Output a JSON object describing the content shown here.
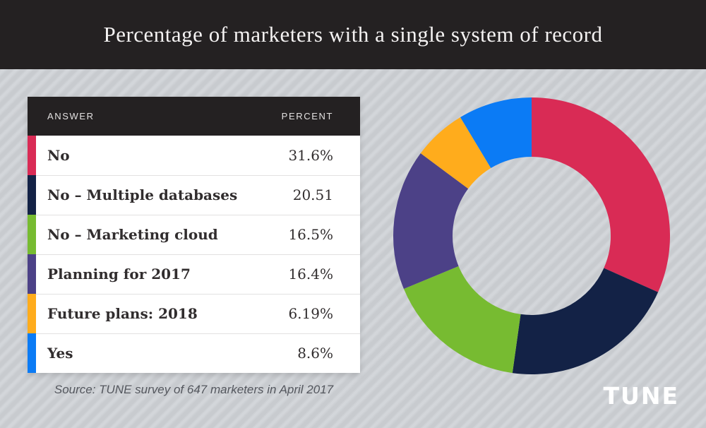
{
  "header": {
    "title": "Percentage of marketers with a single system of record"
  },
  "table": {
    "columns": {
      "answer": "ANSWER",
      "percent": "PERCENT"
    },
    "rows": [
      {
        "answer": "No",
        "percent": "31.6%",
        "color": "#d92b55"
      },
      {
        "answer": "No – Multiple databases",
        "percent": "20.51",
        "color": "#132246"
      },
      {
        "answer": "No – Marketing cloud",
        "percent": "16.5%",
        "color": "#77bb31"
      },
      {
        "answer": "Planning for 2017",
        "percent": "16.4%",
        "color": "#4c4187"
      },
      {
        "answer": "Future plans: 2018",
        "percent": "6.19%",
        "color": "#ffac1c"
      },
      {
        "answer": "Yes",
        "percent": "8.6%",
        "color": "#0b7bf5"
      }
    ]
  },
  "footer": {
    "source": "Source: TUNE survey of 647 marketers in April 2017",
    "logo": "TUNE"
  },
  "theme": {
    "bar_color": "#242122",
    "background_base": "#c8cbcf",
    "background_stripe": "#d3d6da"
  },
  "chart_data": {
    "type": "pie",
    "subtype": "donut",
    "title": "Percentage of marketers with a single system of record",
    "categories": [
      "No",
      "No – Multiple databases",
      "No – Marketing cloud",
      "Planning for 2017",
      "Future plans: 2018",
      "Yes"
    ],
    "values": [
      31.6,
      20.51,
      16.5,
      16.4,
      6.19,
      8.6
    ],
    "colors": [
      "#d92b55",
      "#132246",
      "#77bb31",
      "#4c4187",
      "#ffac1c",
      "#0b7bf5"
    ],
    "start_angle_deg": -90,
    "direction": "clockwise",
    "inner_radius_ratio": 0.57,
    "legend_position": "none",
    "data_labels": false
  }
}
